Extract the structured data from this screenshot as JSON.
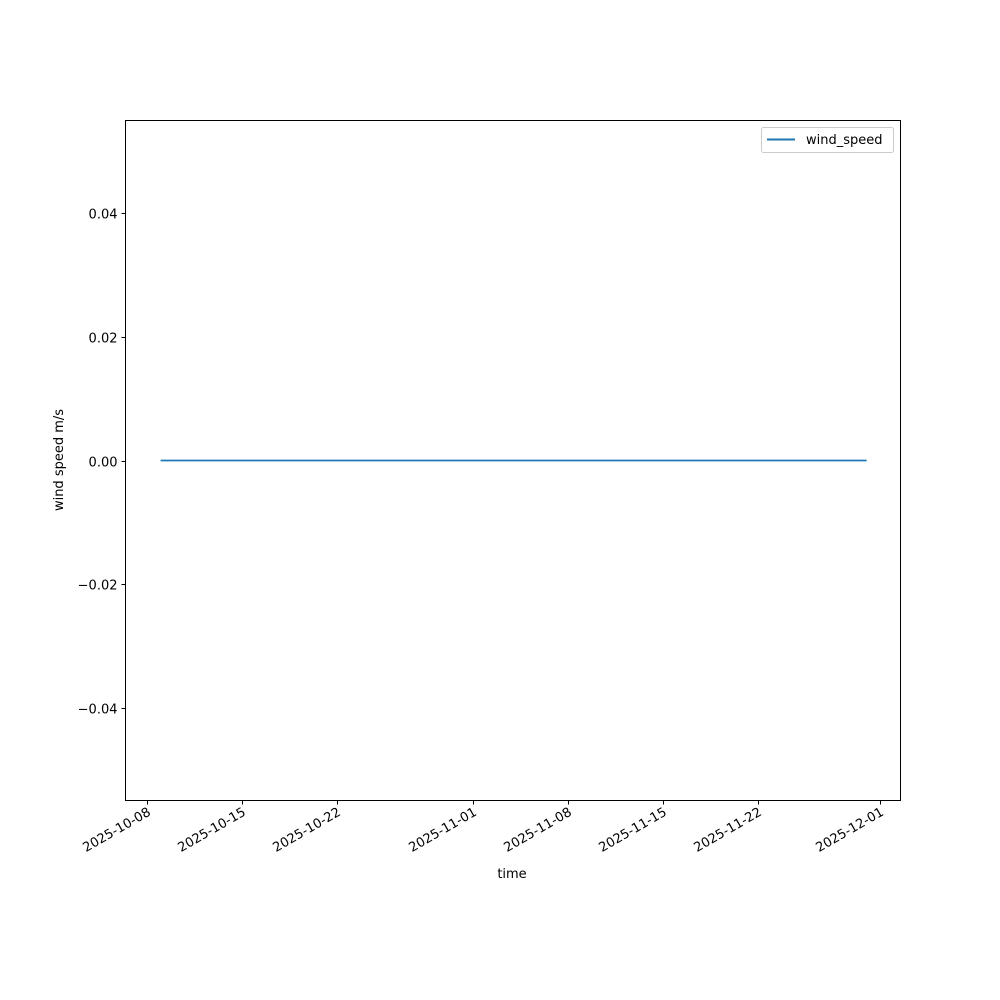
{
  "chart_data": {
    "type": "line",
    "title": "",
    "xlabel": "time",
    "ylabel": "wind speed m/s",
    "xlim": [
      "2025-10-06T10:00",
      "2025-12-02T12:00"
    ],
    "ylim": [
      -0.055,
      0.055
    ],
    "grid": false,
    "legend_placement": "top-right",
    "x_ticks": [
      "2025-10-08",
      "2025-10-15",
      "2025-10-22",
      "2025-11-01",
      "2025-11-08",
      "2025-11-15",
      "2025-11-22",
      "2025-12-01"
    ],
    "y_ticks": [
      -0.04,
      -0.02,
      0.0,
      0.02,
      0.04
    ],
    "y_tick_labels": [
      "−0.04",
      "−0.02",
      "0.00",
      "0.02",
      "0.04"
    ],
    "series": [
      {
        "name": "wind_speed",
        "color": "#1f77b4",
        "x": [
          "2025-10-09",
          "2025-11-30"
        ],
        "y": [
          0,
          0
        ]
      }
    ]
  }
}
